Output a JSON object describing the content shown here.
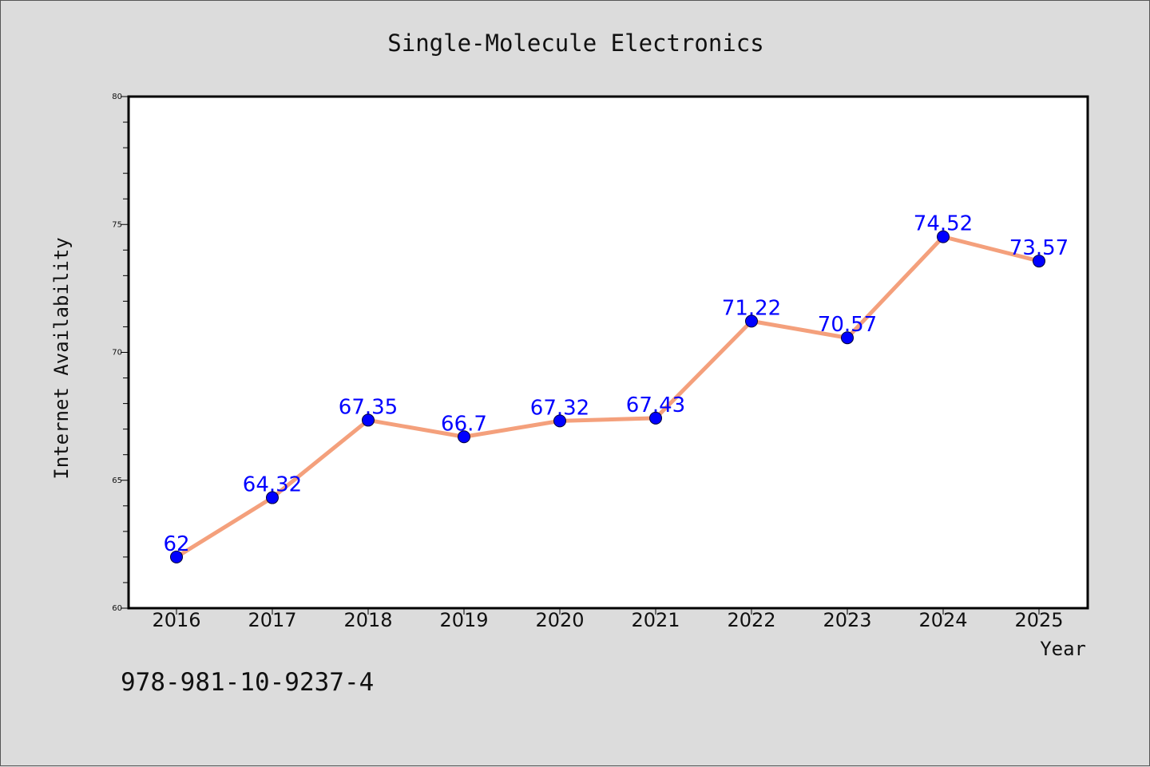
{
  "chart_data": {
    "type": "line",
    "title": "Single-Molecule Electronics",
    "xlabel": "Year",
    "ylabel": "Internet Availability",
    "categories": [
      "2016",
      "2017",
      "2018",
      "2019",
      "2020",
      "2021",
      "2022",
      "2023",
      "2024",
      "2025"
    ],
    "series": [
      {
        "values": [
          62,
          64.32,
          67.35,
          66.7,
          67.32,
          67.43,
          71.22,
          70.57,
          74.52,
          73.57
        ],
        "data_labels": [
          "62",
          "64.32",
          "67.35",
          "66.7",
          "67.32",
          "67.43",
          "71.22",
          "70.57",
          "74.52",
          "73.57"
        ],
        "line_color": "#f4a07c",
        "marker_color": "#0000ff"
      }
    ],
    "ylim": [
      60,
      80
    ],
    "yticks": [
      "60",
      "65",
      "70",
      "75",
      "80"
    ],
    "grid": false,
    "legend": "none"
  },
  "annotation": "978-981-10-9237-4"
}
